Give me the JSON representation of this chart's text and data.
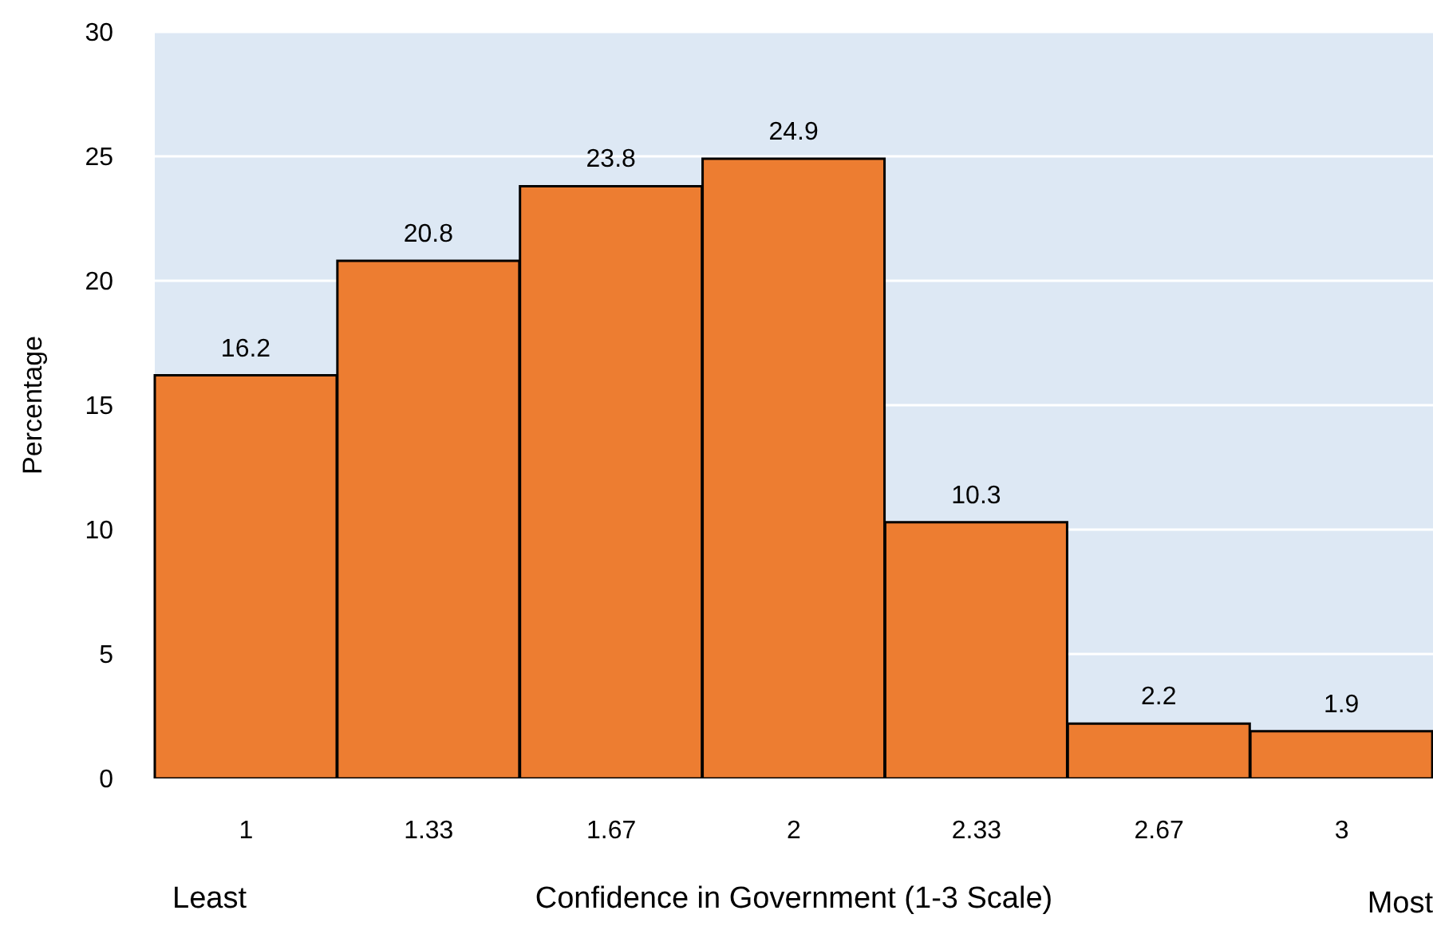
{
  "chart_data": {
    "type": "bar",
    "xlabel": "Confidence in Government (1-3 Scale)",
    "ylabel": "Percentage",
    "categories": [
      "1",
      "1.33",
      "1.67",
      "2",
      "2.33",
      "2.67",
      "3"
    ],
    "values": [
      16.2,
      20.8,
      23.8,
      24.9,
      10.3,
      2.2,
      1.9
    ],
    "color": "#ed7d31",
    "ylim": [
      0,
      30
    ],
    "yticks": [
      0,
      5,
      10,
      15,
      20,
      25,
      30
    ],
    "grid": "y",
    "data_labels": true,
    "annotations": [
      "Least",
      "Most"
    ]
  }
}
